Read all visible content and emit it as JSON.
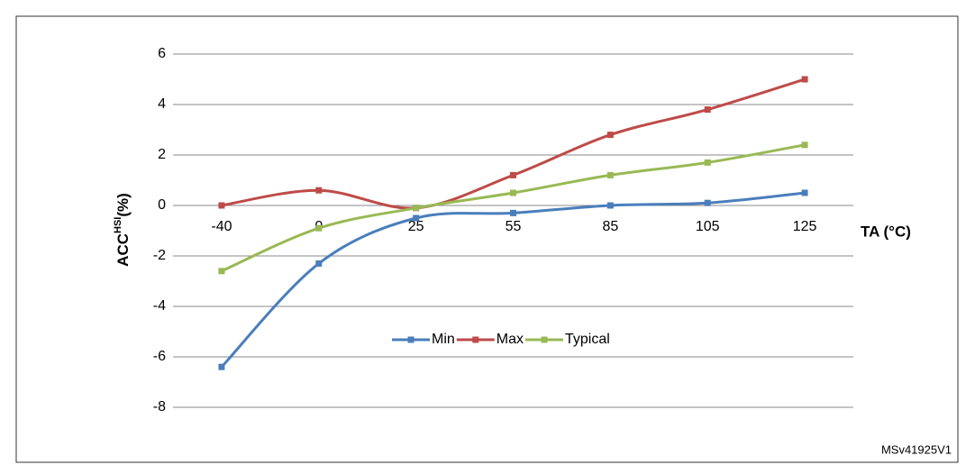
{
  "chart_data": {
    "type": "line",
    "y_label": {
      "main": "ACC",
      "sup": "HSI",
      "unit": "(%)"
    },
    "x_label": "TA (°C)",
    "watermark": "MSv41925V1",
    "categories": [
      "-40",
      "0",
      "25",
      "55",
      "85",
      "105",
      "125"
    ],
    "series": [
      {
        "name": "Min",
        "color": "#4a7ebb",
        "values": [
          -6.4,
          -2.3,
          -0.5,
          -0.3,
          0,
          0.1,
          0.5
        ]
      },
      {
        "name": "Max",
        "color": "#be4b48",
        "values": [
          0,
          0.6,
          -0.1,
          1.2,
          2.8,
          3.8,
          5.0
        ]
      },
      {
        "name": "Typical",
        "color": "#98b954",
        "values": [
          -2.6,
          -0.9,
          -0.1,
          0.5,
          1.2,
          1.7,
          2.4
        ]
      }
    ],
    "ylim": [
      -8,
      6
    ],
    "yticks": [
      -8,
      -6,
      -4,
      -2,
      0,
      2,
      4,
      6
    ],
    "grid": true,
    "smooth": true,
    "legend": "center"
  }
}
